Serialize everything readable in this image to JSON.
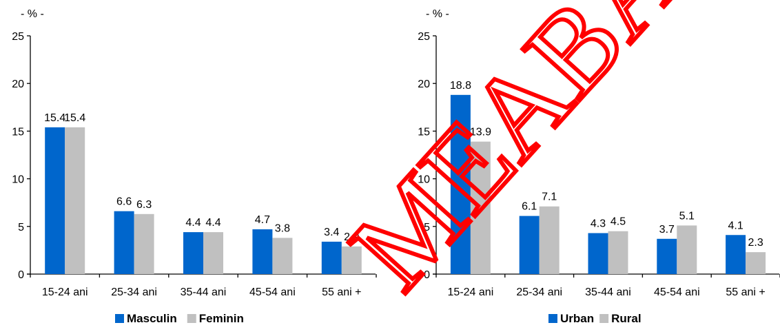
{
  "colors": {
    "series_1": "#0066cc",
    "series_2": "#c0c0c0",
    "axis": "#000000",
    "watermark": "#ff0000"
  },
  "watermark_text": "MEABAA",
  "chart_data": [
    {
      "type": "bar",
      "unit_label": "- % -",
      "categories": [
        "15-24 ani",
        "25-34 ani",
        "35-44 ani",
        "45-54 ani",
        "55 ani +"
      ],
      "series": [
        {
          "name": "Masculin",
          "values": [
            15.4,
            6.6,
            4.4,
            4.7,
            3.4
          ]
        },
        {
          "name": "Feminin",
          "values": [
            15.4,
            6.3,
            4.4,
            3.8,
            2.9
          ]
        }
      ],
      "ylim": [
        0,
        25
      ],
      "yticks": [
        0,
        5,
        10,
        15,
        20,
        25
      ],
      "grid": false,
      "legend_position": "bottom-center",
      "data_labels": true
    },
    {
      "type": "bar",
      "unit_label": "- % -",
      "categories": [
        "15-24 ani",
        "25-34 ani",
        "35-44 ani",
        "45-54 ani",
        "55 ani +"
      ],
      "series": [
        {
          "name": "Urban",
          "values": [
            18.8,
            6.1,
            4.3,
            3.7,
            4.1
          ]
        },
        {
          "name": "Rural",
          "values": [
            13.9,
            7.1,
            4.5,
            5.1,
            2.3
          ]
        }
      ],
      "ylim": [
        0,
        25
      ],
      "yticks": [
        0,
        5,
        10,
        15,
        20,
        25
      ],
      "grid": false,
      "legend_position": "bottom-center",
      "data_labels": true
    }
  ]
}
